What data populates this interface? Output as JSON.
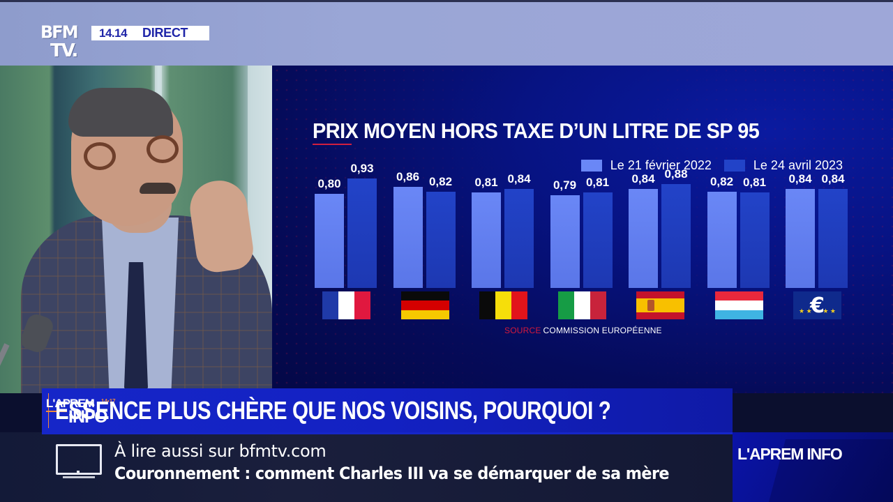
{
  "broadcast": {
    "channel_logo": {
      "line1": "BFM",
      "line2": "TV."
    },
    "time": "14.14",
    "live_label": "DIRECT"
  },
  "chart_data": {
    "type": "bar",
    "title": "PRIX MOYEN HORS TAXE D’UN LITRE DE SP 95",
    "xlabel": "",
    "ylabel": "",
    "categories": [
      "France",
      "Allemagne",
      "Belgique",
      "Italie",
      "Espagne",
      "Luxembourg",
      "Zone euro"
    ],
    "category_icons": [
      "flag-france",
      "flag-germany",
      "flag-belgium",
      "flag-italy",
      "flag-spain",
      "flag-luxembourg",
      "flag-euro"
    ],
    "series": [
      {
        "name": "Le 21 février 2022",
        "color": "#6483f2",
        "values": [
          0.8,
          0.86,
          0.81,
          0.79,
          0.84,
          0.82,
          0.84
        ],
        "labels": [
          "0,80",
          "0,86",
          "0,81",
          "0,79",
          "0,84",
          "0,82",
          "0,84"
        ]
      },
      {
        "name": "Le 24 avril 2023",
        "color": "#1f3fc0",
        "values": [
          0.93,
          0.82,
          0.84,
          0.81,
          0.88,
          0.81,
          0.84
        ],
        "labels": [
          "0,93",
          "0,82",
          "0,84",
          "0,81",
          "0,88",
          "0,81",
          "0,84"
        ]
      }
    ],
    "legend_position": "top-right",
    "grid": false,
    "axis_visible": false,
    "data_labels": true,
    "source_label": "SOURCE",
    "source": "COMMISSION EUROPÉENNE"
  },
  "lower_third": {
    "show_logo": {
      "top": "L'APREM",
      "hours": "14•17",
      "bottom": "INFO"
    },
    "headline": "ESSENCE PLUS CHÈRE QUE NOS VOISINS, POURQUOI ?"
  },
  "ticker": {
    "label": "À lire aussi sur bfmtv.com",
    "story": "Couronnement : comment Charles III va se démarquer de sa mère"
  },
  "brand": {
    "show_name": "L'APREM INFO"
  }
}
